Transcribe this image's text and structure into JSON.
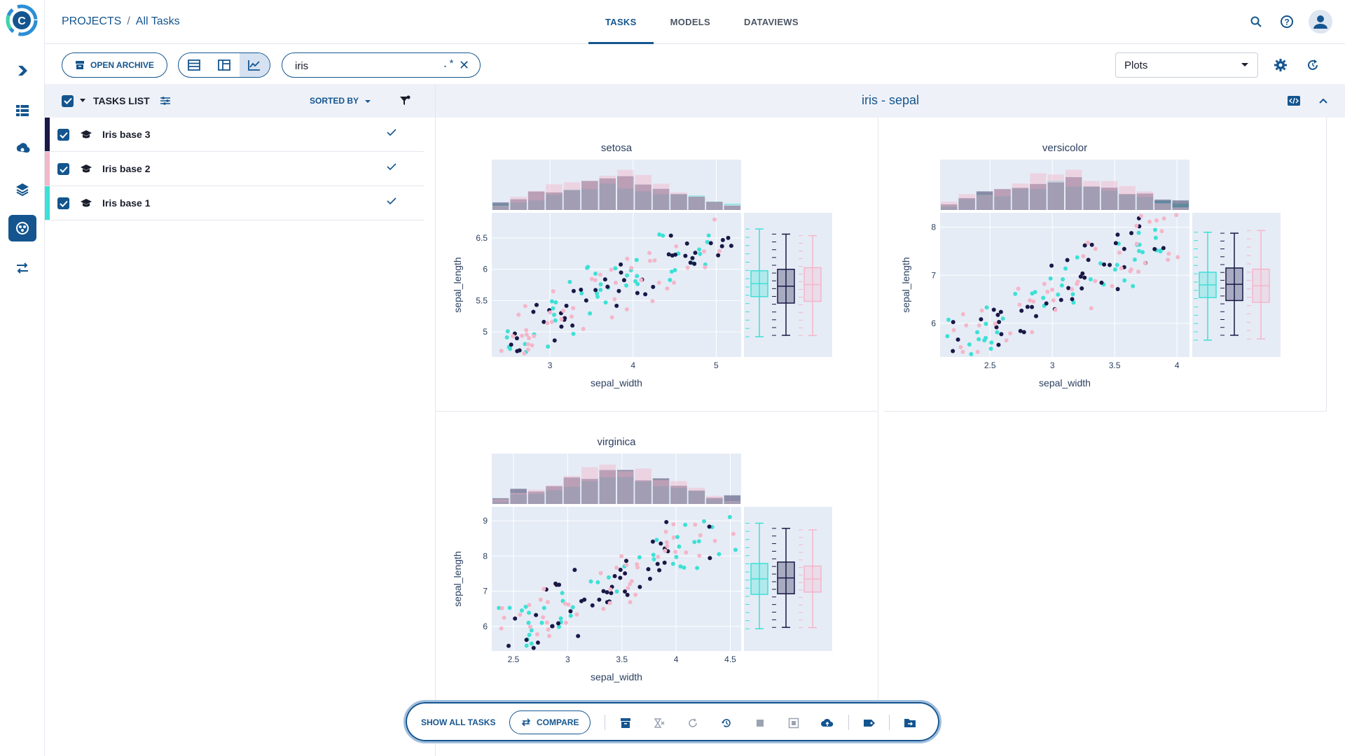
{
  "header": {
    "breadcrumb": {
      "projects": "PROJECTS",
      "separator": "/",
      "current": "All Tasks"
    },
    "tabs": [
      {
        "label": "TASKS",
        "active": true
      },
      {
        "label": "MODELS",
        "active": false
      },
      {
        "label": "DATAVIEWS",
        "active": false
      }
    ],
    "icons": [
      "search-icon",
      "help-icon",
      "user-avatar-icon"
    ]
  },
  "toolbar": {
    "open_archive": "OPEN ARCHIVE",
    "search_value": "iris",
    "regex_label": ".*",
    "clear_label": "✕",
    "view_select": "Plots"
  },
  "tasks_list": {
    "title": "TASKS LIST",
    "sorted_by": "SORTED BY",
    "rows": [
      {
        "name": "Iris base 3",
        "color": "#1a1847",
        "checked": true
      },
      {
        "name": "Iris base 2",
        "color": "#f4b6c9",
        "checked": true
      },
      {
        "name": "Iris base 1",
        "color": "#3de0d6",
        "checked": true
      }
    ]
  },
  "plots": {
    "panel_title": "iris - sepal",
    "series_colors": {
      "Iris base 1": "#3de0d6",
      "Iris base 3": "#1a1847",
      "Iris base 2": "#f4b6c9"
    }
  },
  "chart_data": [
    {
      "type": "scatter",
      "title": "setosa",
      "xlabel": "sepal_width",
      "ylabel": "sepal_length",
      "xticks": [
        "3",
        "4",
        "5"
      ],
      "yticks": [
        "5",
        "5.5",
        "6",
        "6.5"
      ],
      "xlim": [
        2.3,
        5.3
      ],
      "ylim": [
        4.6,
        6.9
      ],
      "marginal_x": "histogram",
      "marginal_y": "box"
    },
    {
      "type": "scatter",
      "title": "versicolor",
      "xlabel": "sepal_width",
      "ylabel": "sepal_length",
      "xticks": [
        "2.5",
        "3",
        "3.5",
        "4"
      ],
      "yticks": [
        "6",
        "7",
        "8"
      ],
      "xlim": [
        2.1,
        4.1
      ],
      "ylim": [
        5.3,
        8.3
      ],
      "marginal_x": "histogram",
      "marginal_y": "box"
    },
    {
      "type": "scatter",
      "title": "virginica",
      "xlabel": "sepal_width",
      "ylabel": "sepal_length",
      "xticks": [
        "2.5",
        "3",
        "3.5",
        "4",
        "4.5"
      ],
      "yticks": [
        "6",
        "7",
        "8",
        "9"
      ],
      "xlim": [
        2.3,
        4.6
      ],
      "ylim": [
        5.3,
        9.4
      ],
      "marginal_x": "histogram",
      "marginal_y": "box"
    }
  ],
  "actionbar": {
    "show_all": "SHOW ALL TASKS",
    "compare": "COMPARE"
  }
}
